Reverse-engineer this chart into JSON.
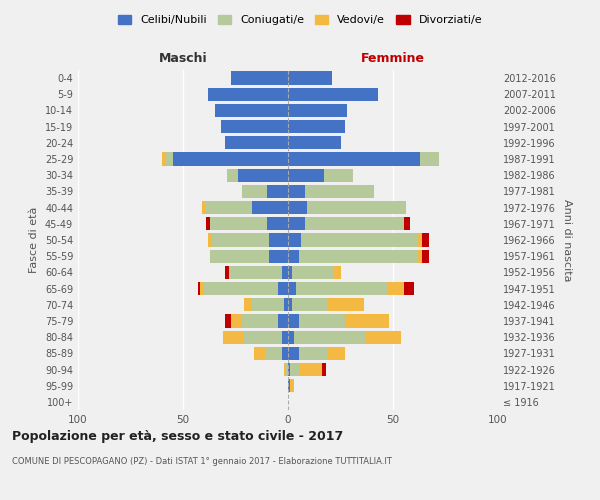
{
  "age_groups": [
    "100+",
    "95-99",
    "90-94",
    "85-89",
    "80-84",
    "75-79",
    "70-74",
    "65-69",
    "60-64",
    "55-59",
    "50-54",
    "45-49",
    "40-44",
    "35-39",
    "30-34",
    "25-29",
    "20-24",
    "15-19",
    "10-14",
    "5-9",
    "0-4"
  ],
  "birth_years": [
    "≤ 1916",
    "1917-1921",
    "1922-1926",
    "1927-1931",
    "1932-1936",
    "1937-1941",
    "1942-1946",
    "1947-1951",
    "1952-1956",
    "1957-1961",
    "1962-1966",
    "1967-1971",
    "1972-1976",
    "1977-1981",
    "1982-1986",
    "1987-1991",
    "1992-1996",
    "1997-2001",
    "2002-2006",
    "2007-2011",
    "2012-2016"
  ],
  "colors": {
    "celibe": "#4472c4",
    "coniugato": "#b5c99a",
    "vedovo": "#f4b942",
    "divorziato": "#c00000"
  },
  "maschi": {
    "celibe": [
      0,
      0,
      0,
      3,
      3,
      5,
      2,
      5,
      3,
      9,
      9,
      10,
      17,
      10,
      24,
      55,
      30,
      32,
      35,
      38,
      27
    ],
    "coniugato": [
      0,
      0,
      1,
      8,
      18,
      17,
      15,
      35,
      25,
      28,
      27,
      27,
      22,
      12,
      5,
      3,
      0,
      0,
      0,
      0,
      0
    ],
    "vedovo": [
      0,
      0,
      1,
      5,
      10,
      5,
      4,
      2,
      0,
      0,
      2,
      0,
      2,
      0,
      0,
      2,
      0,
      0,
      0,
      0,
      0
    ],
    "divorziato": [
      0,
      0,
      0,
      0,
      0,
      3,
      0,
      1,
      2,
      0,
      0,
      2,
      0,
      0,
      0,
      0,
      0,
      0,
      0,
      0,
      0
    ]
  },
  "femmine": {
    "nubile": [
      0,
      1,
      1,
      5,
      3,
      5,
      2,
      4,
      2,
      5,
      6,
      8,
      9,
      8,
      17,
      63,
      25,
      27,
      28,
      43,
      21
    ],
    "coniugata": [
      0,
      0,
      4,
      14,
      34,
      22,
      17,
      43,
      20,
      57,
      56,
      47,
      47,
      33,
      14,
      9,
      0,
      0,
      0,
      0,
      0
    ],
    "vedova": [
      0,
      2,
      11,
      8,
      17,
      21,
      17,
      8,
      3,
      2,
      2,
      0,
      0,
      0,
      0,
      0,
      0,
      0,
      0,
      0,
      0
    ],
    "divorziata": [
      0,
      0,
      2,
      0,
      0,
      0,
      0,
      5,
      0,
      3,
      3,
      3,
      0,
      0,
      0,
      0,
      0,
      0,
      0,
      0,
      0
    ]
  },
  "xlim": 100,
  "title": "Popolazione per età, sesso e stato civile - 2017",
  "subtitle": "COMUNE DI PESCOPAGANO (PZ) - Dati ISTAT 1° gennaio 2017 - Elaborazione TUTTITALIA.IT",
  "xlabel_left": "Maschi",
  "xlabel_right": "Femmine",
  "ylabel": "Fasce di età",
  "ylabel_right": "Anni di nascita",
  "bg_color": "#f0f0f0",
  "grid_color": "#ffffff",
  "legend_labels": [
    "Celibi/Nubili",
    "Coniugati/e",
    "Vedovi/e",
    "Divorziati/e"
  ]
}
